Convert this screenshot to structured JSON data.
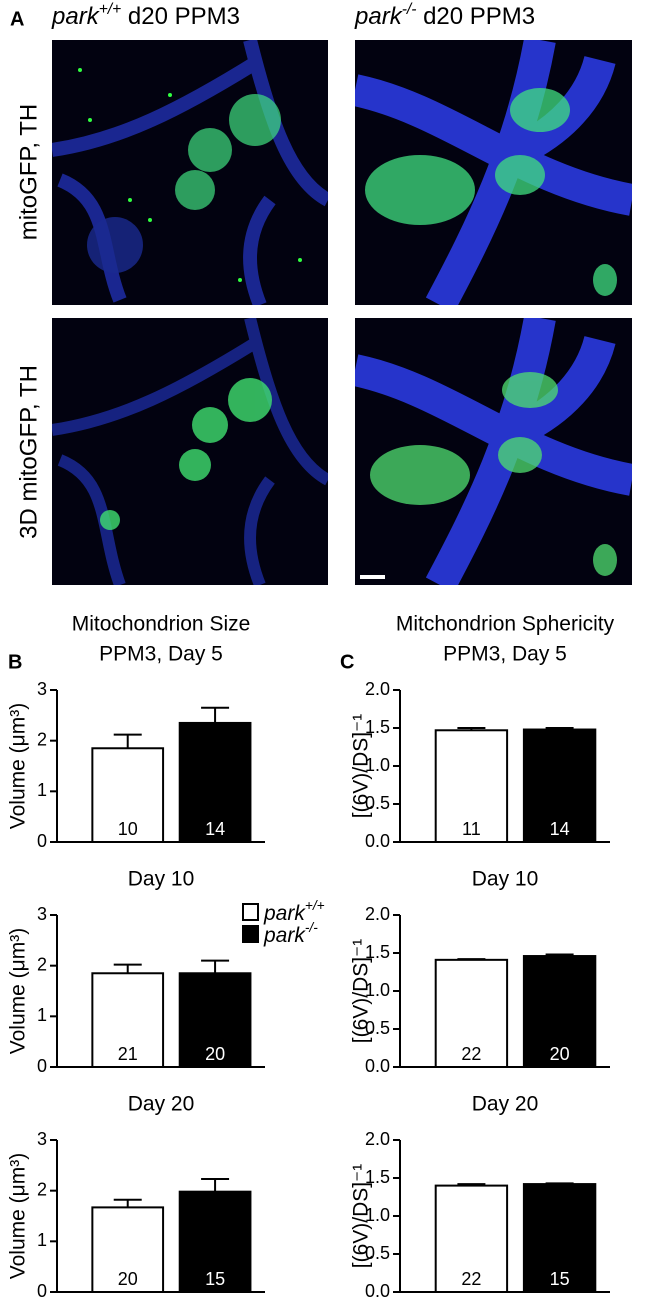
{
  "panels": {
    "a": "A",
    "b": "B",
    "c": "C"
  },
  "images": {
    "columns": [
      "park+/+ d20 PPM3",
      "park-/- d20 PPM3"
    ],
    "rows": [
      "mitoGFP, TH",
      "3D mitoGFP, TH"
    ]
  },
  "legend": [
    {
      "name": "park+/+",
      "color": "#ffffff"
    },
    {
      "name": "park-/-",
      "color": "#000000"
    }
  ],
  "chart_data": [
    {
      "type": "bar",
      "title": "Mitochondrion Size",
      "subtitle": "PPM3, Day 5",
      "y_label": "Volume (μm³)",
      "ylim": [
        0,
        3
      ],
      "yticks": [
        0,
        1,
        2,
        3
      ],
      "series": [
        {
          "color": "#ffffff",
          "values": [
            1.85
          ],
          "errors": [
            0.27
          ],
          "n": [
            10
          ]
        },
        {
          "color": "#000000",
          "values": [
            2.35
          ],
          "errors": [
            0.3
          ],
          "n": [
            14
          ]
        }
      ]
    },
    {
      "type": "bar",
      "title": "Day 10",
      "y_label": "Volume (μm³)",
      "ylim": [
        0,
        3
      ],
      "yticks": [
        0,
        1,
        2,
        3
      ],
      "series": [
        {
          "color": "#ffffff",
          "values": [
            1.85
          ],
          "errors": [
            0.17
          ],
          "n": [
            21
          ]
        },
        {
          "color": "#000000",
          "values": [
            1.85
          ],
          "errors": [
            0.25
          ],
          "n": [
            20
          ]
        }
      ]
    },
    {
      "type": "bar",
      "title": "Day 20",
      "y_label": "Volume (μm³)",
      "ylim": [
        0,
        3
      ],
      "yticks": [
        0,
        1,
        2,
        3
      ],
      "series": [
        {
          "color": "#ffffff",
          "values": [
            1.67
          ],
          "errors": [
            0.15
          ],
          "n": [
            20
          ]
        },
        {
          "color": "#000000",
          "values": [
            1.98
          ],
          "errors": [
            0.25
          ],
          "n": [
            15
          ]
        }
      ]
    },
    {
      "type": "bar",
      "title": "Mitchondrion Sphericity",
      "subtitle": "PPM3, Day 5",
      "y_label": "[(6V)/DS]⁻¹",
      "ylim": [
        0,
        2
      ],
      "yticks": [
        {
          "value": 0,
          "label": "0.0"
        },
        0.5,
        {
          "value": 1,
          "label": "1.0"
        },
        1.5,
        {
          "value": 2,
          "label": "2.0"
        }
      ],
      "series": [
        {
          "color": "#ffffff",
          "values": [
            1.47
          ],
          "errors": [
            0.03
          ],
          "n": [
            11
          ]
        },
        {
          "color": "#000000",
          "values": [
            1.48
          ],
          "errors": [
            0.02
          ],
          "n": [
            14
          ]
        }
      ]
    },
    {
      "type": "bar",
      "title": "Day 10",
      "y_label": "[(6V)/DS]⁻¹",
      "ylim": [
        0,
        2
      ],
      "yticks": [
        {
          "value": 0,
          "label": "0.0"
        },
        0.5,
        {
          "value": 1,
          "label": "1.0"
        },
        1.5,
        {
          "value": 2,
          "label": "2.0"
        }
      ],
      "series": [
        {
          "color": "#ffffff",
          "values": [
            1.41
          ],
          "errors": [
            0.01
          ],
          "n": [
            22
          ]
        },
        {
          "color": "#000000",
          "values": [
            1.46
          ],
          "errors": [
            0.02
          ],
          "n": [
            20
          ]
        }
      ]
    },
    {
      "type": "bar",
      "title": "Day 20",
      "y_label": "[(6V)/DS]⁻¹",
      "ylim": [
        0,
        2
      ],
      "yticks": [
        {
          "value": 0,
          "label": "0.0"
        },
        0.5,
        {
          "value": 1,
          "label": "1.0"
        },
        1.5,
        {
          "value": 2,
          "label": "2.0"
        }
      ],
      "series": [
        {
          "color": "#ffffff",
          "values": [
            1.4
          ],
          "errors": [
            0.02
          ],
          "n": [
            22
          ]
        },
        {
          "color": "#000000",
          "values": [
            1.42
          ],
          "errors": [
            0.01
          ],
          "n": [
            15
          ]
        }
      ]
    }
  ]
}
